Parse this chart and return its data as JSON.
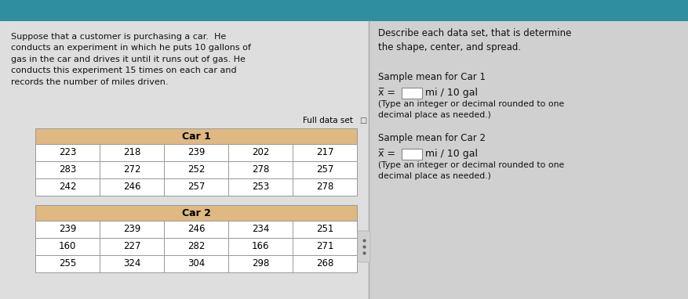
{
  "left_text": "Suppose that a customer is purchasing a car.  He\nconducts an experiment in which he puts 10 gallons of\ngas in the car and drives it until it runs out of gas. He\nconducts this experiment 15 times on each car and\nrecords the number of miles driven.",
  "right_text_title": "Describe each data set, that is determine\nthe shape, center, and spread.",
  "car1_header": "Car 1",
  "car2_header": "Car 2",
  "car1_data": [
    [
      223,
      218,
      239,
      202,
      217
    ],
    [
      283,
      272,
      252,
      278,
      257
    ],
    [
      242,
      246,
      257,
      253,
      278
    ]
  ],
  "car2_data": [
    [
      239,
      239,
      246,
      234,
      251
    ],
    [
      160,
      227,
      282,
      166,
      271
    ],
    [
      255,
      324,
      304,
      298,
      268
    ]
  ],
  "full_data_set_label": "Full data set",
  "sample_mean_car1_label": "Sample mean for Car 1",
  "sample_mean_car2_label": "Sample mean for Car 2",
  "xbar_formula_prefix": "x̅ = ",
  "mi_per_gal": "mi / 10 gal",
  "type_note": "(Type an integer or decimal rounded to one\ndecimal place as needed.)",
  "header_bg_color": "#E0B882",
  "table_border_color": "#999999",
  "left_bg_color": "#DEDEDE",
  "right_bg_color": "#D0D0D0",
  "top_bar_color": "#2E8FA0",
  "input_box_color": "#FFFFFF",
  "text_color": "#111111",
  "divider_color": "#AAAAAA"
}
